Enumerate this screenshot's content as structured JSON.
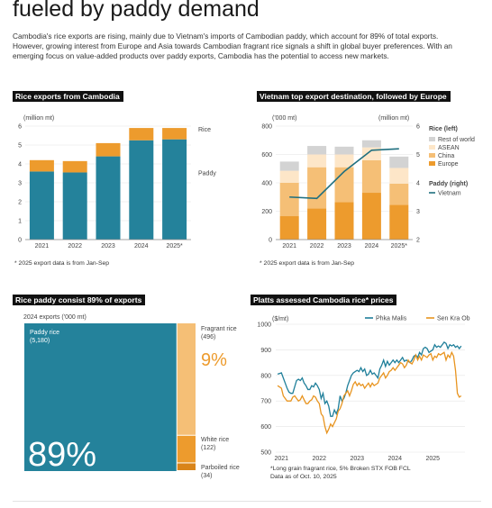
{
  "headline": "fueled by paddy demand",
  "intro": "Cambodia's rice exports are rising, mainly due to Vietnam's imports of Cambodian paddy, which account for 89% of total exports. However, growing interest from Europe and Asia towards Cambodian fragrant rice signals a shift in global buyer preferences. With an emerging focus on value-added products over paddy exports, Cambodia has the potential to access new markets.",
  "colors": {
    "teal": "#24829b",
    "orange": "#ed9b2d",
    "light_orange": "#f5bf76",
    "pale": "#fde6c8",
    "grey": "#d3d3d3"
  },
  "chart_data": [
    {
      "type": "bar",
      "title": "Rice exports from Cambodia",
      "unit": "(million mt)",
      "categories": [
        "2021",
        "2022",
        "2023",
        "2024",
        "2025*"
      ],
      "series": [
        {
          "name": "Paddy",
          "values": [
            3.6,
            3.55,
            4.4,
            5.25,
            5.3
          ]
        },
        {
          "name": "Rice",
          "values": [
            0.6,
            0.6,
            0.7,
            0.65,
            0.6
          ]
        }
      ],
      "ylim": [
        0,
        6
      ],
      "yticks": [
        "0",
        "1",
        "2",
        "3",
        "4",
        "5",
        "6"
      ],
      "note": "* 2025 export data is from Jan-Sep"
    },
    {
      "type": "bar",
      "title": "Vietnam top export destination, followed by Europe",
      "unit_left": "('000 mt)",
      "unit_right": "(million mt)",
      "categories": [
        "2021",
        "2022",
        "2023",
        "2024",
        "2025*"
      ],
      "legend_rice_title": "Rice (left)",
      "legend_paddy_title": "Paddy (right)",
      "series": [
        {
          "name": "Europe",
          "values": [
            165,
            220,
            265,
            330,
            245
          ]
        },
        {
          "name": "China",
          "values": [
            235,
            290,
            245,
            230,
            150
          ]
        },
        {
          "name": "ASEAN",
          "values": [
            85,
            90,
            90,
            90,
            110
          ]
        },
        {
          "name": "Rest of world",
          "values": [
            65,
            60,
            55,
            50,
            80
          ]
        }
      ],
      "line_series": {
        "name": "Vietnam",
        "values": [
          3.5,
          3.45,
          4.4,
          5.15,
          5.2
        ]
      },
      "ylim_left": [
        0,
        800
      ],
      "ylim_right": [
        2,
        6
      ],
      "yticks_left": [
        "0",
        "200",
        "400",
        "600",
        "800"
      ],
      "yticks_right": [
        "2",
        "3",
        "4",
        "5",
        "6"
      ],
      "note": "* 2025 export data is from Jan-Sep"
    },
    {
      "type": "treemap",
      "title": "Rice paddy consist 89% of exports",
      "unit": "2024 exports ('000 mt)",
      "items": [
        {
          "name": "Paddy rice",
          "value_label": "(5,180)",
          "value": 5180
        },
        {
          "name": "Fragrant rice",
          "value_label": "(496)",
          "value": 496
        },
        {
          "name": "White rice",
          "value_label": "(122)",
          "value": 122
        },
        {
          "name": "Parboiled rice",
          "value_label": "(34)",
          "value": 34
        }
      ],
      "big_percent": "89%",
      "small_percent": "9%"
    },
    {
      "type": "line",
      "title": "Platts assessed Cambodia rice* prices",
      "unit": "($/mt)",
      "x_ticks": [
        "2021",
        "2022",
        "2023",
        "2024",
        "2025"
      ],
      "ylim": [
        500,
        1000
      ],
      "yticks": [
        "500",
        "600",
        "700",
        "800",
        "900",
        "1000"
      ],
      "series": [
        {
          "name": "Phka Malis",
          "x": [
            2020.9,
            2021.0,
            2021.05,
            2021.1,
            2021.15,
            2021.2,
            2021.25,
            2021.3,
            2021.35,
            2021.4,
            2021.45,
            2021.5,
            2021.55,
            2021.6,
            2021.65,
            2021.7,
            2021.75,
            2021.8,
            2021.85,
            2021.9,
            2021.95,
            2022.0,
            2022.05,
            2022.1,
            2022.15,
            2022.2,
            2022.25,
            2022.3,
            2022.35,
            2022.4,
            2022.45,
            2022.5,
            2022.55,
            2022.6,
            2022.65,
            2022.7,
            2022.75,
            2022.8,
            2022.85,
            2022.9,
            2022.95,
            2023.0,
            2023.05,
            2023.1,
            2023.15,
            2023.2,
            2023.25,
            2023.3,
            2023.35,
            2023.4,
            2023.45,
            2023.5,
            2023.55,
            2023.6,
            2023.65,
            2023.7,
            2023.75,
            2023.8,
            2023.85,
            2023.9,
            2023.95,
            2024.0,
            2024.05,
            2024.1,
            2024.15,
            2024.2,
            2024.25,
            2024.3,
            2024.35,
            2024.4,
            2024.45,
            2024.5,
            2024.55,
            2024.6,
            2024.65,
            2024.7,
            2024.75,
            2024.8,
            2024.85,
            2024.9,
            2024.95,
            2025.0,
            2025.05,
            2025.1,
            2025.15,
            2025.2,
            2025.25,
            2025.3,
            2025.35,
            2025.4,
            2025.45,
            2025.5,
            2025.55,
            2025.6,
            2025.65,
            2025.7,
            2025.75
          ],
          "values": [
            805,
            810,
            790,
            770,
            750,
            735,
            730,
            730,
            755,
            780,
            785,
            780,
            790,
            770,
            760,
            745,
            745,
            760,
            755,
            770,
            760,
            745,
            710,
            730,
            690,
            700,
            680,
            640,
            640,
            665,
            650,
            670,
            720,
            700,
            710,
            730,
            760,
            780,
            800,
            810,
            815,
            820,
            815,
            830,
            815,
            825,
            800,
            805,
            820,
            805,
            810,
            800,
            790,
            825,
            840,
            860,
            835,
            855,
            840,
            850,
            860,
            850,
            860,
            850,
            860,
            870,
            855,
            860,
            855,
            850,
            860,
            875,
            880,
            870,
            890,
            880,
            905,
            910,
            905,
            890,
            895,
            900,
            920,
            910,
            915,
            910,
            920,
            930,
            925,
            905,
            920,
            915,
            920,
            910,
            915,
            905,
            915
          ]
        },
        {
          "name": "Sen Kra Ob",
          "x": [
            2020.9,
            2021.0,
            2021.05,
            2021.1,
            2021.15,
            2021.2,
            2021.25,
            2021.3,
            2021.35,
            2021.4,
            2021.45,
            2021.5,
            2021.55,
            2021.6,
            2021.65,
            2021.7,
            2021.75,
            2021.8,
            2021.85,
            2021.9,
            2021.95,
            2022.0,
            2022.05,
            2022.1,
            2022.15,
            2022.2,
            2022.25,
            2022.3,
            2022.35,
            2022.4,
            2022.45,
            2022.5,
            2022.55,
            2022.6,
            2022.65,
            2022.7,
            2022.75,
            2022.8,
            2022.85,
            2022.9,
            2022.95,
            2023.0,
            2023.05,
            2023.1,
            2023.15,
            2023.2,
            2023.25,
            2023.3,
            2023.35,
            2023.4,
            2023.45,
            2023.5,
            2023.55,
            2023.6,
            2023.65,
            2023.7,
            2023.75,
            2023.8,
            2023.85,
            2023.9,
            2023.95,
            2024.0,
            2024.05,
            2024.1,
            2024.15,
            2024.2,
            2024.25,
            2024.3,
            2024.35,
            2024.4,
            2024.45,
            2024.5,
            2024.55,
            2024.6,
            2024.65,
            2024.7,
            2024.75,
            2024.8,
            2024.85,
            2024.9,
            2024.95,
            2025.0,
            2025.05,
            2025.1,
            2025.15,
            2025.2,
            2025.25,
            2025.3,
            2025.35,
            2025.4,
            2025.45,
            2025.5,
            2025.55,
            2025.6,
            2025.65,
            2025.7,
            2025.75
          ],
          "values": [
            760,
            750,
            720,
            710,
            700,
            700,
            700,
            715,
            720,
            710,
            700,
            705,
            720,
            705,
            690,
            690,
            700,
            705,
            720,
            715,
            700,
            690,
            650,
            640,
            600,
            575,
            590,
            610,
            600,
            615,
            630,
            660,
            670,
            690,
            720,
            730,
            740,
            720,
            740,
            765,
            775,
            760,
            770,
            760,
            765,
            750,
            760,
            770,
            755,
            770,
            760,
            765,
            770,
            790,
            800,
            810,
            790,
            800,
            815,
            820,
            830,
            820,
            830,
            840,
            850,
            845,
            830,
            840,
            860,
            850,
            845,
            860,
            880,
            860,
            875,
            860,
            880,
            875,
            870,
            880,
            885,
            860,
            875,
            870,
            885,
            880,
            885,
            890,
            860,
            880,
            870,
            890,
            875,
            820,
            730,
            715,
            720
          ]
        }
      ],
      "footnote": "*Long grain fragrant rice, 5% Broken STX FOB FCL\nData as of Oct. 10, 2025"
    }
  ]
}
